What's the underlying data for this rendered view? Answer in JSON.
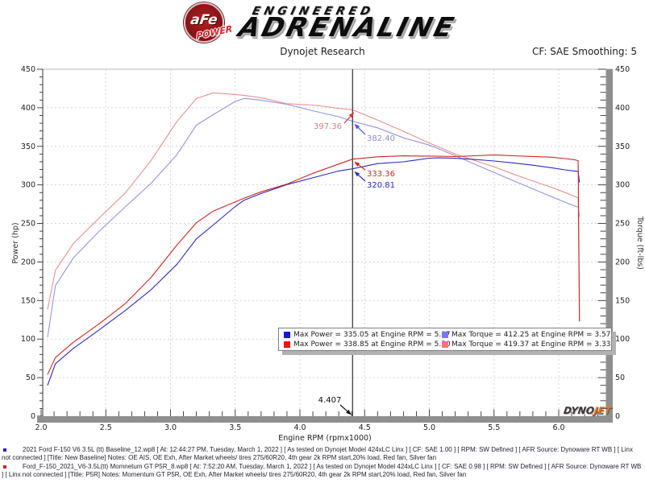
{
  "header": {
    "badge_top": "aFe",
    "badge_bottom": "POWER",
    "engineered": "ENGINEERED",
    "adrenaline": "ADRENALINE"
  },
  "titlebar": {
    "title": "Dynojet Research",
    "smoothing": "CF: SAE Smoothing: 5"
  },
  "chart_data": {
    "type": "line",
    "title": "Dynojet Research",
    "xlabel": "Engine RPM (rpmx1000)",
    "ylabel_left": "Power (hp)",
    "ylabel_right": "Torque (ft-lbs)",
    "xlim": [
      2.0,
      6.35
    ],
    "ylim": [
      0,
      450
    ],
    "grid": "dashed",
    "x_tick_labels": [
      "2.0",
      "2.5",
      "3.0",
      "3.5",
      "4.0",
      "4.5",
      "5.0",
      "5.5",
      "6.0"
    ],
    "x_ticks_major": [
      2.0,
      2.5,
      3.0,
      3.5,
      4.0,
      4.5,
      5.0,
      5.5,
      6.0
    ],
    "y_ticks_major": [
      0,
      50,
      100,
      150,
      200,
      250,
      300,
      350,
      400,
      450
    ],
    "x": [
      2.05,
      2.11,
      2.25,
      2.45,
      2.65,
      2.85,
      3.05,
      3.2,
      3.33,
      3.5,
      3.57,
      3.7,
      3.9,
      4.1,
      4.3,
      4.407,
      4.6,
      4.8,
      5.0,
      5.07,
      5.2,
      5.35,
      5.5,
      5.65,
      5.8,
      5.95,
      6.05,
      6.12,
      6.15,
      6.16
    ],
    "series": [
      {
        "name": "power-baseline",
        "color": "#2a2ac0",
        "max_label": "Max Power = 335.05 at Engine RPM = 5.07",
        "y": [
          40,
          68,
          88,
          112,
          137,
          164,
          197,
          230,
          248,
          272,
          280.2,
          288.8,
          300.4,
          309.2,
          318,
          320.8,
          327.6,
          329.9,
          334.6,
          335.05,
          334.5,
          333,
          331,
          328.5,
          325.5,
          322,
          319.5,
          318,
          317.5,
          303
        ]
      },
      {
        "name": "power-p5r",
        "color": "#cc2626",
        "max_label": "Max Power = 338.85 at Engine RPM = 5.50",
        "y": [
          54,
          76,
          96,
          120,
          146,
          180,
          222,
          251,
          266,
          278,
          282.8,
          291,
          301,
          315,
          327,
          333.4,
          336.4,
          337.7,
          337.3,
          337.2,
          336.7,
          337.8,
          338.9,
          337.8,
          336.8,
          335.9,
          334.1,
          332.6,
          331.4,
          123
        ]
      },
      {
        "name": "torque-baseline",
        "color": "#9494e6",
        "max_label": "Max Torque = 412.25 at Engine RPM = 3.57",
        "y": [
          102.5,
          169.3,
          205.4,
          240.1,
          271.5,
          302.2,
          339.2,
          377.5,
          391.1,
          408.2,
          412.25,
          409.9,
          404.5,
          396.1,
          388.4,
          382.4,
          374,
          361,
          351.5,
          347,
          337.9,
          326.9,
          316.1,
          305.4,
          294.8,
          284.2,
          277.4,
          272.9,
          271.1,
          258.5
        ]
      },
      {
        "name": "torque-p5r",
        "color": "#e89090",
        "max_label": "Max Torque = 419.37 at Engine RPM = 3.33",
        "y": [
          138.3,
          189.2,
          224.1,
          257.2,
          289.4,
          331.7,
          382.3,
          412,
          419.4,
          417.2,
          416,
          413.1,
          405.3,
          403.5,
          399.4,
          397.4,
          384.1,
          369.5,
          354.3,
          349.3,
          340.1,
          331.6,
          323.6,
          314,
          305,
          296.5,
          290,
          285.4,
          283,
          123
        ]
      }
    ],
    "cursor": {
      "rpm": 4.407,
      "label": "4.407"
    },
    "annotations": [
      {
        "text": "397.36",
        "value": 397.36,
        "text_color": "#cf8282",
        "arrow_color": "#e03030",
        "label_x": 424,
        "label_y": 160,
        "anchor": "end",
        "tail_x": 427,
        "tail_y": 153
      },
      {
        "text": "382.40",
        "value": 382.4,
        "text_color": "#8c8cd0",
        "arrow_color": "#5050e0",
        "label_x": 455,
        "label_y": 175,
        "anchor": "start",
        "tail_x": 453,
        "tail_y": 167
      },
      {
        "text": "333.36",
        "value": 333.36,
        "text_color": "#d42a2a",
        "arrow_color": "#e02020",
        "label_x": 455,
        "label_y": 219,
        "anchor": "start",
        "tail_x": 453,
        "tail_y": 211
      },
      {
        "text": "320.81",
        "value": 320.81,
        "text_color": "#2a2ab4",
        "arrow_color": "#3030c8",
        "label_x": 455,
        "label_y": 233,
        "anchor": "start",
        "tail_x": 453,
        "tail_y": 225
      }
    ]
  },
  "legend": {
    "entries": [
      {
        "color": "#1616dd",
        "text": "Max Power = 335.05 at Engine RPM = 5.07"
      },
      {
        "color": "#7a7af0",
        "text": "Max Torque = 412.25 at Engine RPM = 3.57"
      },
      {
        "color": "#ee1111",
        "text": "Max Power = 338.85 at Engine RPM = 5.50"
      },
      {
        "color": "#f07878",
        "text": "Max Torque = 419.37 at Engine RPM = 3.33"
      }
    ]
  },
  "footer": {
    "runs": [
      {
        "bullet_color": "#2222cc",
        "text": "2021 Ford F-150 V6 3.5L (tt) Baseline_12.wp8 [ At: 12:44:27 PM, Tuesday, March 1, 2022 ] [ As tested on Dynojet Model 424xLC Linx ] [ CF: SAE 1.00 ] [ RPM: SW Defined ] [ AFR Source: Dynoware RT WB ] [ Linx not connected ] [Title: New Baseline]  Notes: OE AIS, OE Exh, After Market wheels/ tires 275/60R20, 4th gear 2k RPM start,20% load, Red fan, Silver fan"
      },
      {
        "bullet_color": "#cc2222",
        "text": "Ford_F-150_2021_V6-3.5L(tt) Momnetum GT P5R_8.wp8 [ At: 7:52:20 AM, Tuesday, March 1, 2022 ] [ As tested on Dynojet Model 424xLC Linx ] [ CF: SAE 0.98 ] [ RPM: SW Defined ] [ AFR Source: Dynoware RT WB ] [ Linx not connected ] [Title: P5R]  Notes: Momentum GT  P5R, OE Exh, After Market wheels/ tires 275/60R20, 4th gear 2k RPM start,20% load, Red fan, Silver fan"
      }
    ]
  },
  "watermark": {
    "dyno": "DYNO",
    "jet": "JET"
  }
}
